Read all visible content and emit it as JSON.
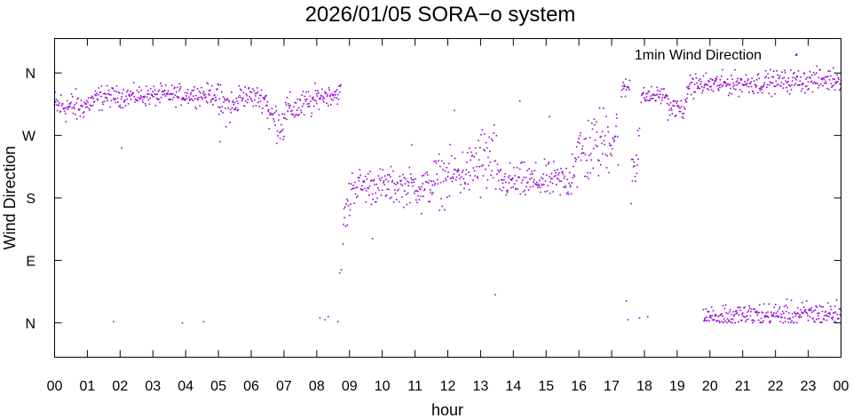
{
  "chart_data": {
    "type": "scatter",
    "title": "2026/01/05 SORA−o system",
    "xlabel": "hour",
    "ylabel": "Wind Direction",
    "legend": {
      "label": "1min Wind Direction",
      "placement": "top-right"
    },
    "colors": {
      "series": "#9400d3",
      "axis": "#000000",
      "background": "#ffffff"
    },
    "xlim": [
      0,
      24
    ],
    "ylim": [
      -0.55,
      4.55
    ],
    "x_ticks": [
      {
        "v": 0,
        "label": "00"
      },
      {
        "v": 1,
        "label": "01"
      },
      {
        "v": 2,
        "label": "02"
      },
      {
        "v": 3,
        "label": "03"
      },
      {
        "v": 4,
        "label": "04"
      },
      {
        "v": 5,
        "label": "05"
      },
      {
        "v": 6,
        "label": "06"
      },
      {
        "v": 7,
        "label": "07"
      },
      {
        "v": 8,
        "label": "08"
      },
      {
        "v": 9,
        "label": "09"
      },
      {
        "v": 10,
        "label": "10"
      },
      {
        "v": 11,
        "label": "11"
      },
      {
        "v": 12,
        "label": "12"
      },
      {
        "v": 13,
        "label": "13"
      },
      {
        "v": 14,
        "label": "14"
      },
      {
        "v": 15,
        "label": "15"
      },
      {
        "v": 16,
        "label": "16"
      },
      {
        "v": 17,
        "label": "17"
      },
      {
        "v": 18,
        "label": "18"
      },
      {
        "v": 19,
        "label": "19"
      },
      {
        "v": 20,
        "label": "20"
      },
      {
        "v": 21,
        "label": "21"
      },
      {
        "v": 22,
        "label": "22"
      },
      {
        "v": 23,
        "label": "23"
      },
      {
        "v": 24,
        "label": "00"
      }
    ],
    "y_ticks": [
      {
        "v": 0,
        "label": "N"
      },
      {
        "v": 1,
        "label": "E"
      },
      {
        "v": 2,
        "label": "S"
      },
      {
        "v": 3,
        "label": "W"
      },
      {
        "v": 4,
        "label": "N"
      }
    ],
    "series": [
      {
        "name": "1min Wind Direction",
        "segments": [
          {
            "x0": 0.0,
            "x1": 0.8,
            "y0": 3.47,
            "y1": 3.45,
            "spread": 0.13
          },
          {
            "x0": 0.8,
            "x1": 1.6,
            "y0": 3.45,
            "y1": 3.65,
            "spread": 0.1
          },
          {
            "x0": 1.6,
            "x1": 5.0,
            "y0": 3.62,
            "y1": 3.66,
            "spread": 0.08
          },
          {
            "x0": 5.0,
            "x1": 5.6,
            "y0": 3.5,
            "y1": 3.45,
            "spread": 0.15
          },
          {
            "x0": 5.6,
            "x1": 6.5,
            "y0": 3.65,
            "y1": 3.58,
            "spread": 0.09
          },
          {
            "x0": 6.5,
            "x1": 7.0,
            "y0": 3.35,
            "y1": 3.15,
            "spread": 0.15
          },
          {
            "x0": 7.0,
            "x1": 8.0,
            "y0": 3.38,
            "y1": 3.55,
            "spread": 0.12
          },
          {
            "x0": 8.0,
            "x1": 8.75,
            "y0": 3.62,
            "y1": 3.68,
            "spread": 0.08
          },
          {
            "x0": 8.8,
            "x1": 9.05,
            "y0": 1.55,
            "y1": 2.05,
            "spread": 0.18
          },
          {
            "x0": 9.05,
            "x1": 11.5,
            "y0": 2.2,
            "y1": 2.18,
            "spread": 0.14
          },
          {
            "x0": 11.5,
            "x1": 12.8,
            "y0": 2.25,
            "y1": 2.45,
            "spread": 0.2
          },
          {
            "x0": 12.8,
            "x1": 13.5,
            "y0": 2.55,
            "y1": 2.6,
            "spread": 0.3
          },
          {
            "x0": 13.5,
            "x1": 15.8,
            "y0": 2.25,
            "y1": 2.28,
            "spread": 0.14
          },
          {
            "x0": 15.8,
            "x1": 17.2,
            "y0": 2.6,
            "y1": 3.05,
            "spread": 0.28
          },
          {
            "x0": 17.3,
            "x1": 17.55,
            "y0": 3.7,
            "y1": 3.8,
            "spread": 0.08
          },
          {
            "x0": 17.6,
            "x1": 17.85,
            "y0": 2.4,
            "y1": 3.0,
            "spread": 0.3
          },
          {
            "x0": 17.9,
            "x1": 18.7,
            "y0": 3.62,
            "y1": 3.65,
            "spread": 0.07
          },
          {
            "x0": 18.7,
            "x1": 19.3,
            "y0": 3.45,
            "y1": 3.42,
            "spread": 0.08
          },
          {
            "x0": 19.3,
            "x1": 24.0,
            "y0": 3.8,
            "y1": 3.9,
            "spread": 0.09
          },
          {
            "x0": 19.8,
            "x1": 24.0,
            "y0": 0.1,
            "y1": 0.15,
            "spread": 0.1
          }
        ],
        "outliers": [
          {
            "x": 1.8,
            "y": 0.02
          },
          {
            "x": 3.9,
            "y": 0.0
          },
          {
            "x": 4.55,
            "y": 0.02
          },
          {
            "x": 8.1,
            "y": 0.08
          },
          {
            "x": 8.25,
            "y": 0.05
          },
          {
            "x": 8.35,
            "y": 0.1
          },
          {
            "x": 8.65,
            "y": 0.02
          },
          {
            "x": 8.7,
            "y": 0.8
          },
          {
            "x": 8.75,
            "y": 0.85
          },
          {
            "x": 13.45,
            "y": 0.45
          },
          {
            "x": 17.45,
            "y": 0.35
          },
          {
            "x": 17.5,
            "y": 0.05
          },
          {
            "x": 17.85,
            "y": 0.08
          },
          {
            "x": 18.1,
            "y": 0.1
          },
          {
            "x": 2.05,
            "y": 2.8
          },
          {
            "x": 5.05,
            "y": 2.9
          },
          {
            "x": 22.65,
            "y": 4.3
          },
          {
            "x": 10.9,
            "y": 2.85
          },
          {
            "x": 12.2,
            "y": 3.4
          },
          {
            "x": 14.2,
            "y": 3.55
          },
          {
            "x": 15.1,
            "y": 3.3
          },
          {
            "x": 9.7,
            "y": 1.35
          },
          {
            "x": 11.2,
            "y": 1.75
          }
        ]
      }
    ]
  }
}
